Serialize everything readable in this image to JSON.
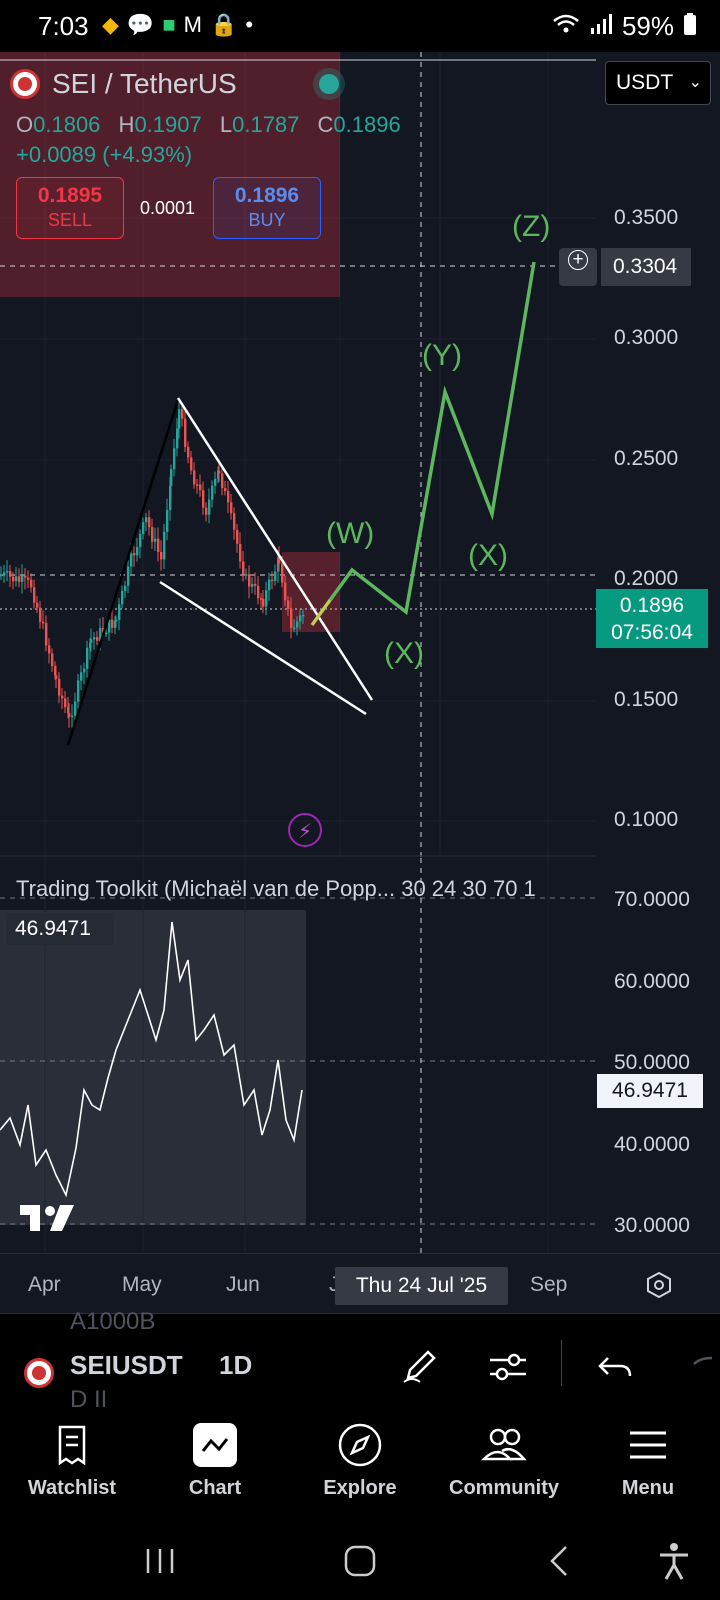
{
  "status_bar": {
    "time": "7:03",
    "battery": "59%",
    "dot": "•"
  },
  "header": {
    "pair": "SEI / TetherUS",
    "currency_select": "USDT",
    "ohlc": {
      "o_label": "O",
      "o": "0.1806",
      "h_label": "H",
      "h": "0.1907",
      "l_label": "L",
      "l": "0.1787",
      "c_label": "C",
      "c": "0.1896"
    },
    "change": "+0.0089 (+4.93%)",
    "sell_price": "0.1895",
    "sell_label": "SELL",
    "spread": "0.0001",
    "buy_price": "0.1896",
    "buy_label": "BUY"
  },
  "price_axis": {
    "labels": [
      "0.3500",
      "0.3000",
      "0.2500",
      "0.2000",
      "0.1500",
      "0.1000"
    ],
    "crosshair_price": "0.3304",
    "last_price": "0.1896",
    "countdown": "07:56:04"
  },
  "wave_labels": [
    "(W)",
    "(X)",
    "(Y)",
    "(X)",
    "(Z)"
  ],
  "indicator": {
    "title": "Trading Toolkit (Michaël van de Popp... 30 24 30 70 1",
    "current_value": "46.9471",
    "axis_labels": [
      "70.0000",
      "60.0000",
      "50.0000",
      "40.0000",
      "30.0000"
    ],
    "axis_value": "46.9471"
  },
  "time_axis": {
    "labels": [
      "Apr",
      "May",
      "Jun",
      "J",
      "Sep"
    ],
    "crosshair_date": "Thu 24 Jul '25"
  },
  "symbol_bar": {
    "symbol": "SEIUSDT",
    "interval": "1D",
    "ghost_top": "A1000B",
    "ghost_bottom": "D II"
  },
  "tabs": [
    "Watchlist",
    "Chart",
    "Explore",
    "Community",
    "Menu"
  ],
  "colors": {
    "background": "#131722",
    "bull": "#26a69a",
    "bear": "#ef5350",
    "projection": "#5cb85c",
    "sell": "#f23645",
    "buy": "#2962ff"
  }
}
